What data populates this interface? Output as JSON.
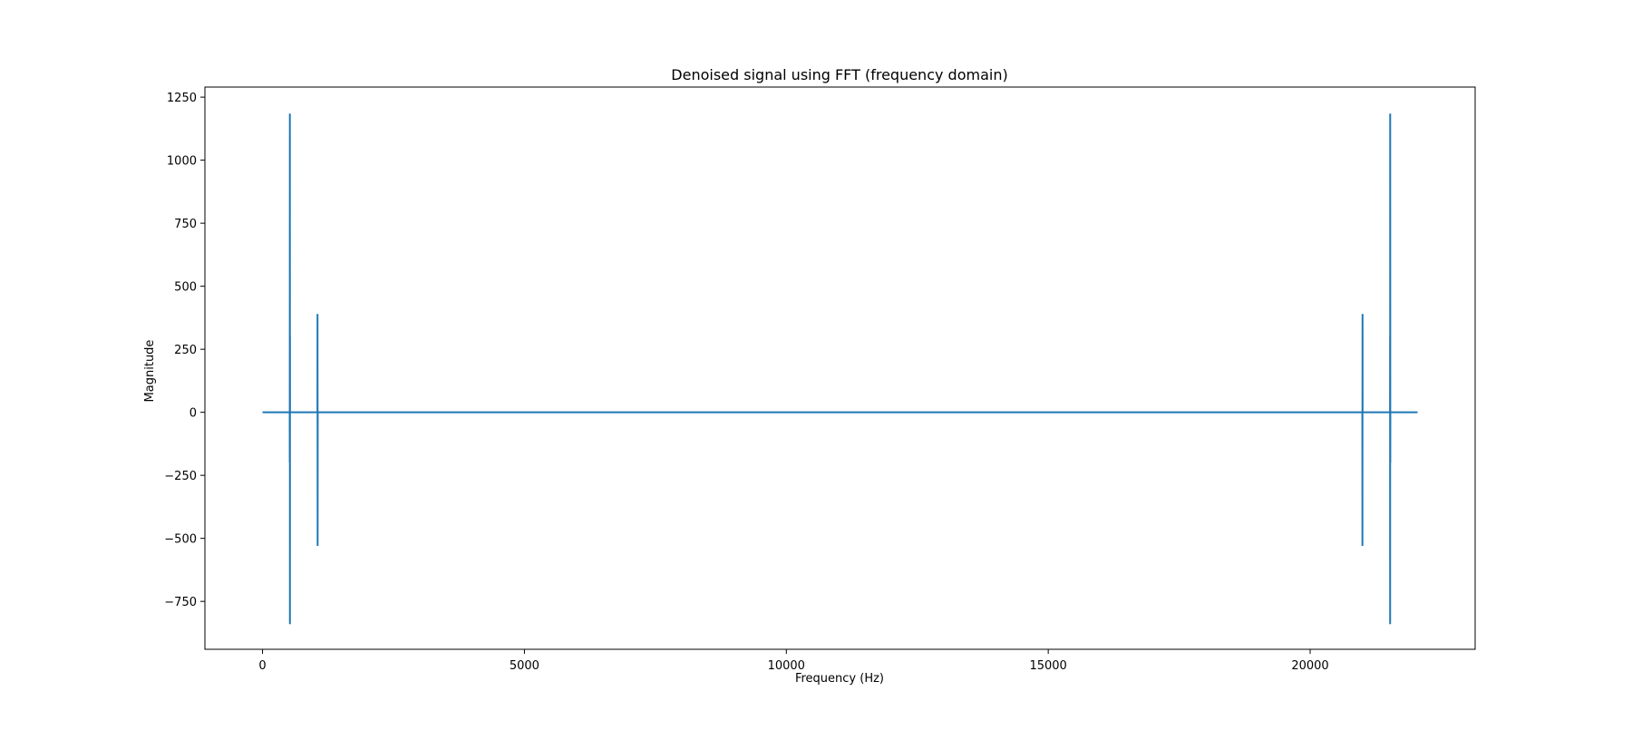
{
  "chart_data": {
    "type": "line",
    "title": "Denoised signal using FFT (frequency domain)",
    "xlabel": "Frequency (Hz)",
    "ylabel": "Magnitude",
    "xlim": [
      -1100,
      23150
    ],
    "ylim": [
      -940,
      1290
    ],
    "xticks": [
      0,
      5000,
      10000,
      15000,
      20000
    ],
    "yticks": [
      1250,
      1000,
      750,
      500,
      250,
      0,
      -250,
      -500,
      -750
    ],
    "xtick_labels": [
      "0",
      "5000",
      "10000",
      "15000",
      "20000"
    ],
    "ytick_labels": [
      "1250",
      "1000",
      "750",
      "500",
      "250",
      "0",
      "−250",
      "−500",
      "−750"
    ],
    "grid": false,
    "line_color": "#1f77b4",
    "series": [
      {
        "x": [
          0,
          519,
          520,
          521,
          522,
          523,
          524,
          525,
          1049,
          1050,
          1051,
          1052,
          1053,
          1054,
          20996,
          20997,
          20998,
          20999,
          21000,
          21001,
          21525,
          21526,
          21527,
          21528,
          21529,
          21530,
          21531,
          22050
        ],
        "y": [
          0,
          0,
          -200,
          500,
          1185,
          -840,
          300,
          0,
          0,
          390,
          100,
          -530,
          -180,
          0,
          0,
          -180,
          -530,
          100,
          390,
          0,
          0,
          300,
          -840,
          1185,
          500,
          -200,
          0,
          0
        ]
      }
    ]
  }
}
